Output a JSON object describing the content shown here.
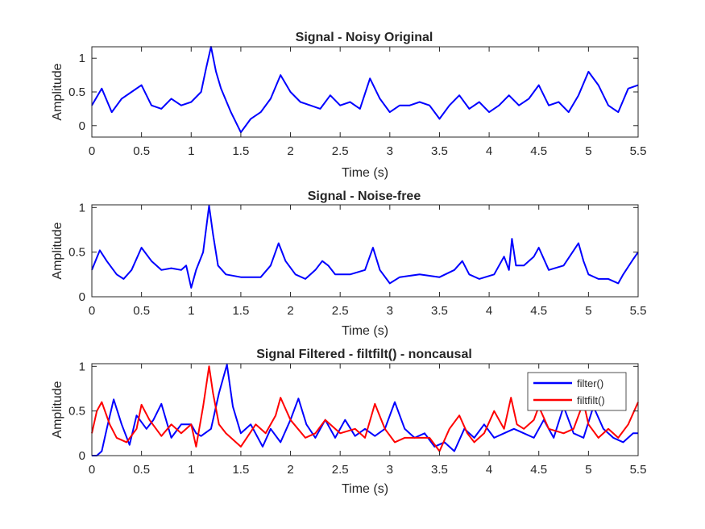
{
  "chart_data": [
    {
      "type": "line",
      "title": "Signal - Noisy Original",
      "xlabel": "Time (s)",
      "ylabel": "Amplitude",
      "xlim": [
        0,
        5.5
      ],
      "ylim": [
        -0.17,
        1.17
      ],
      "xticks": [
        0,
        0.5,
        1,
        1.5,
        2,
        2.5,
        3,
        3.5,
        4,
        4.5,
        5,
        5.5
      ],
      "xtick_labels": [
        "0",
        "0.5",
        "1",
        "1.5",
        "2",
        "2.5",
        "3",
        "3.5",
        "4",
        "4.5",
        "5",
        "5.5"
      ],
      "yticks": [
        0,
        0.5,
        1
      ],
      "ytick_labels": [
        "0",
        "0.5",
        "1"
      ],
      "grid": false,
      "series": [
        {
          "color": "#0000ff",
          "x": [
            0,
            0.1,
            0.2,
            0.3,
            0.4,
            0.5,
            0.6,
            0.7,
            0.8,
            0.9,
            1.0,
            1.1,
            1.15,
            1.2,
            1.25,
            1.3,
            1.4,
            1.5,
            1.6,
            1.7,
            1.8,
            1.9,
            2.0,
            2.1,
            2.2,
            2.3,
            2.4,
            2.5,
            2.6,
            2.7,
            2.8,
            2.9,
            3.0,
            3.1,
            3.2,
            3.3,
            3.4,
            3.5,
            3.6,
            3.7,
            3.8,
            3.9,
            4.0,
            4.1,
            4.2,
            4.3,
            4.4,
            4.5,
            4.6,
            4.7,
            4.8,
            4.9,
            5.0,
            5.1,
            5.2,
            5.3,
            5.4,
            5.5
          ],
          "y": [
            0.3,
            0.55,
            0.2,
            0.4,
            0.5,
            0.6,
            0.3,
            0.25,
            0.4,
            0.3,
            0.35,
            0.5,
            0.85,
            1.17,
            0.8,
            0.55,
            0.2,
            -0.1,
            0.1,
            0.2,
            0.4,
            0.75,
            0.5,
            0.35,
            0.3,
            0.25,
            0.45,
            0.3,
            0.35,
            0.25,
            0.7,
            0.4,
            0.2,
            0.3,
            0.3,
            0.35,
            0.3,
            0.1,
            0.3,
            0.45,
            0.25,
            0.35,
            0.2,
            0.3,
            0.45,
            0.3,
            0.4,
            0.6,
            0.3,
            0.35,
            0.2,
            0.45,
            0.8,
            0.6,
            0.3,
            0.2,
            0.55,
            0.6
          ]
        }
      ]
    },
    {
      "type": "line",
      "title": "Signal - Noise-free",
      "xlabel": "Time (s)",
      "ylabel": "Amplitude",
      "xlim": [
        0,
        5.5
      ],
      "ylim": [
        0,
        1.03
      ],
      "xticks": [
        0,
        0.5,
        1,
        1.5,
        2,
        2.5,
        3,
        3.5,
        4,
        4.5,
        5,
        5.5
      ],
      "xtick_labels": [
        "0",
        "0.5",
        "1",
        "1.5",
        "2",
        "2.5",
        "3",
        "3.5",
        "4",
        "4.5",
        "5",
        "5.5"
      ],
      "yticks": [
        0,
        0.5,
        1
      ],
      "ytick_labels": [
        "0",
        "0.5",
        "1"
      ],
      "grid": false,
      "series": [
        {
          "color": "#0000ff",
          "x": [
            0,
            0.08,
            0.15,
            0.25,
            0.32,
            0.4,
            0.5,
            0.6,
            0.7,
            0.8,
            0.9,
            0.95,
            1.0,
            1.05,
            1.12,
            1.18,
            1.22,
            1.27,
            1.35,
            1.5,
            1.7,
            1.8,
            1.88,
            1.95,
            2.05,
            2.15,
            2.25,
            2.32,
            2.38,
            2.45,
            2.6,
            2.75,
            2.83,
            2.9,
            3.0,
            3.1,
            3.3,
            3.5,
            3.65,
            3.73,
            3.8,
            3.9,
            4.05,
            4.15,
            4.2,
            4.23,
            4.27,
            4.35,
            4.45,
            4.5,
            4.6,
            4.75,
            4.9,
            4.95,
            5.0,
            5.1,
            5.2,
            5.3,
            5.35,
            5.45,
            5.5
          ],
          "y": [
            0.3,
            0.52,
            0.4,
            0.25,
            0.2,
            0.3,
            0.55,
            0.4,
            0.3,
            0.32,
            0.3,
            0.35,
            0.1,
            0.3,
            0.5,
            1.02,
            0.7,
            0.35,
            0.25,
            0.22,
            0.22,
            0.35,
            0.6,
            0.4,
            0.25,
            0.2,
            0.3,
            0.4,
            0.35,
            0.25,
            0.25,
            0.3,
            0.55,
            0.3,
            0.15,
            0.22,
            0.25,
            0.22,
            0.3,
            0.4,
            0.25,
            0.2,
            0.25,
            0.45,
            0.3,
            0.65,
            0.35,
            0.35,
            0.45,
            0.55,
            0.3,
            0.35,
            0.6,
            0.4,
            0.25,
            0.2,
            0.2,
            0.15,
            0.25,
            0.42,
            0.5
          ]
        }
      ]
    },
    {
      "type": "line",
      "title": "Signal Filtered - filtfilt() - noncausal",
      "xlabel": "Time (s)",
      "ylabel": "Amplitude",
      "xlim": [
        0,
        5.5
      ],
      "ylim": [
        0,
        1.03
      ],
      "xticks": [
        0,
        0.5,
        1,
        1.5,
        2,
        2.5,
        3,
        3.5,
        4,
        4.5,
        5,
        5.5
      ],
      "xtick_labels": [
        "0",
        "0.5",
        "1",
        "1.5",
        "2",
        "2.5",
        "3",
        "3.5",
        "4",
        "4.5",
        "5",
        "5.5"
      ],
      "yticks": [
        0,
        0.5,
        1
      ],
      "ytick_labels": [
        "0",
        "0.5",
        "1"
      ],
      "grid": false,
      "legend": "top-right",
      "series": [
        {
          "name": "filter()",
          "color": "#0000ff",
          "x": [
            0,
            0.05,
            0.1,
            0.15,
            0.22,
            0.3,
            0.38,
            0.45,
            0.55,
            0.62,
            0.7,
            0.8,
            0.9,
            1.0,
            1.05,
            1.1,
            1.2,
            1.28,
            1.36,
            1.42,
            1.5,
            1.6,
            1.72,
            1.8,
            1.9,
            2.0,
            2.08,
            2.16,
            2.25,
            2.35,
            2.45,
            2.55,
            2.65,
            2.75,
            2.85,
            2.95,
            3.05,
            3.15,
            3.25,
            3.35,
            3.45,
            3.55,
            3.65,
            3.75,
            3.85,
            3.95,
            4.05,
            4.15,
            4.25,
            4.35,
            4.45,
            4.55,
            4.65,
            4.75,
            4.85,
            4.95,
            5.05,
            5.15,
            5.25,
            5.35,
            5.45,
            5.5
          ],
          "y": [
            0,
            0,
            0.05,
            0.3,
            0.63,
            0.35,
            0.12,
            0.45,
            0.3,
            0.4,
            0.58,
            0.2,
            0.35,
            0.35,
            0.25,
            0.22,
            0.3,
            0.7,
            1.02,
            0.55,
            0.25,
            0.35,
            0.1,
            0.3,
            0.15,
            0.4,
            0.64,
            0.35,
            0.2,
            0.4,
            0.2,
            0.4,
            0.22,
            0.3,
            0.22,
            0.3,
            0.6,
            0.3,
            0.2,
            0.25,
            0.1,
            0.15,
            0.05,
            0.3,
            0.2,
            0.35,
            0.2,
            0.25,
            0.3,
            0.25,
            0.2,
            0.4,
            0.2,
            0.55,
            0.25,
            0.2,
            0.55,
            0.3,
            0.2,
            0.15,
            0.25,
            0.25
          ]
        },
        {
          "name": "filtfilt()",
          "color": "#ff0000",
          "x": [
            0,
            0.05,
            0.1,
            0.18,
            0.25,
            0.35,
            0.45,
            0.5,
            0.58,
            0.7,
            0.8,
            0.9,
            1.0,
            1.05,
            1.12,
            1.18,
            1.22,
            1.28,
            1.35,
            1.5,
            1.65,
            1.75,
            1.85,
            1.9,
            2.0,
            2.15,
            2.25,
            2.35,
            2.5,
            2.65,
            2.75,
            2.85,
            2.95,
            3.05,
            3.15,
            3.3,
            3.4,
            3.5,
            3.6,
            3.7,
            3.78,
            3.85,
            3.95,
            4.05,
            4.15,
            4.22,
            4.28,
            4.35,
            4.45,
            4.5,
            4.6,
            4.75,
            4.85,
            4.95,
            5.0,
            5.1,
            5.2,
            5.3,
            5.4,
            5.5
          ],
          "y": [
            0.25,
            0.5,
            0.6,
            0.35,
            0.2,
            0.15,
            0.3,
            0.57,
            0.4,
            0.22,
            0.35,
            0.25,
            0.35,
            0.1,
            0.55,
            1.0,
            0.7,
            0.35,
            0.25,
            0.1,
            0.35,
            0.25,
            0.45,
            0.65,
            0.4,
            0.2,
            0.25,
            0.4,
            0.25,
            0.3,
            0.2,
            0.58,
            0.3,
            0.15,
            0.2,
            0.2,
            0.2,
            0.05,
            0.3,
            0.45,
            0.25,
            0.15,
            0.25,
            0.5,
            0.3,
            0.65,
            0.35,
            0.3,
            0.4,
            0.55,
            0.3,
            0.25,
            0.3,
            0.6,
            0.35,
            0.2,
            0.3,
            0.2,
            0.35,
            0.6
          ]
        }
      ]
    }
  ]
}
